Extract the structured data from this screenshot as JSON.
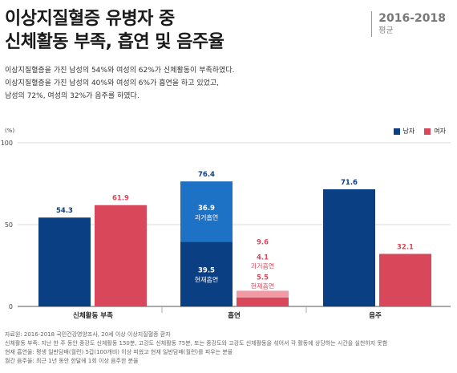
{
  "title_lines": [
    "이상지질혈증 유병자 중",
    "신체활동 부족, 흡연 및 음주율"
  ],
  "period": {
    "years": "2016-2018",
    "label": "평균"
  },
  "summary_lines": [
    "이상지질혈증을 가진 남성의 54%와 여성의 62%가 신체활동이 부족하였다.",
    "이상지질혈증을 가진 남성의 40%와 여성의 6%가 흡연을 하고 있었고,",
    "남성의 72%, 여성의 32%가 음주를 하였다."
  ],
  "colors": {
    "male": "#0b3f84",
    "female": "#d9485a",
    "male_past": "#1e72c6",
    "female_past": "#f19aa5"
  },
  "chart_data": {
    "type": "bar",
    "ylabel": "(%)",
    "ylim": [
      0,
      100
    ],
    "yticks": [
      0,
      50,
      100
    ],
    "categories": [
      "신체활동 부족",
      "흡연",
      "음주"
    ],
    "series": [
      {
        "name": "남자",
        "values": [
          54.3,
          76.4,
          71.6
        ]
      },
      {
        "name": "여자",
        "values": [
          61.9,
          9.6,
          32.1
        ]
      }
    ],
    "smoking_breakdown": {
      "male": {
        "current": 39.5,
        "past": 36.9,
        "total": 76.4
      },
      "female": {
        "current": 5.5,
        "past": 4.1,
        "total": 9.6
      },
      "current_label": "현재흡연",
      "past_label": "과거흡연"
    },
    "legend": [
      "남자",
      "여자"
    ]
  },
  "notes": [
    "자료원: 2016-2018 국민건강영양조사, 20세 이상 이상지질혈증 환자",
    "신체활동 부족: 지난 한 주 동안 중강도 신체활동 150분, 고강도 신체활동 75분, 또는 중강도와 고강도 신체활동을 섞어서 각 활동에 상당하는 시간을 실천하지 못함",
    "현재 흡연율: 평생 일반담배(궐련) 5갑(100개비) 이상 피웠고 현재 일반담배(궐련)를 피우는 분율",
    "월간 음주율: 최근 1년 동안 한달에 1회 이상 음주한 분율"
  ]
}
